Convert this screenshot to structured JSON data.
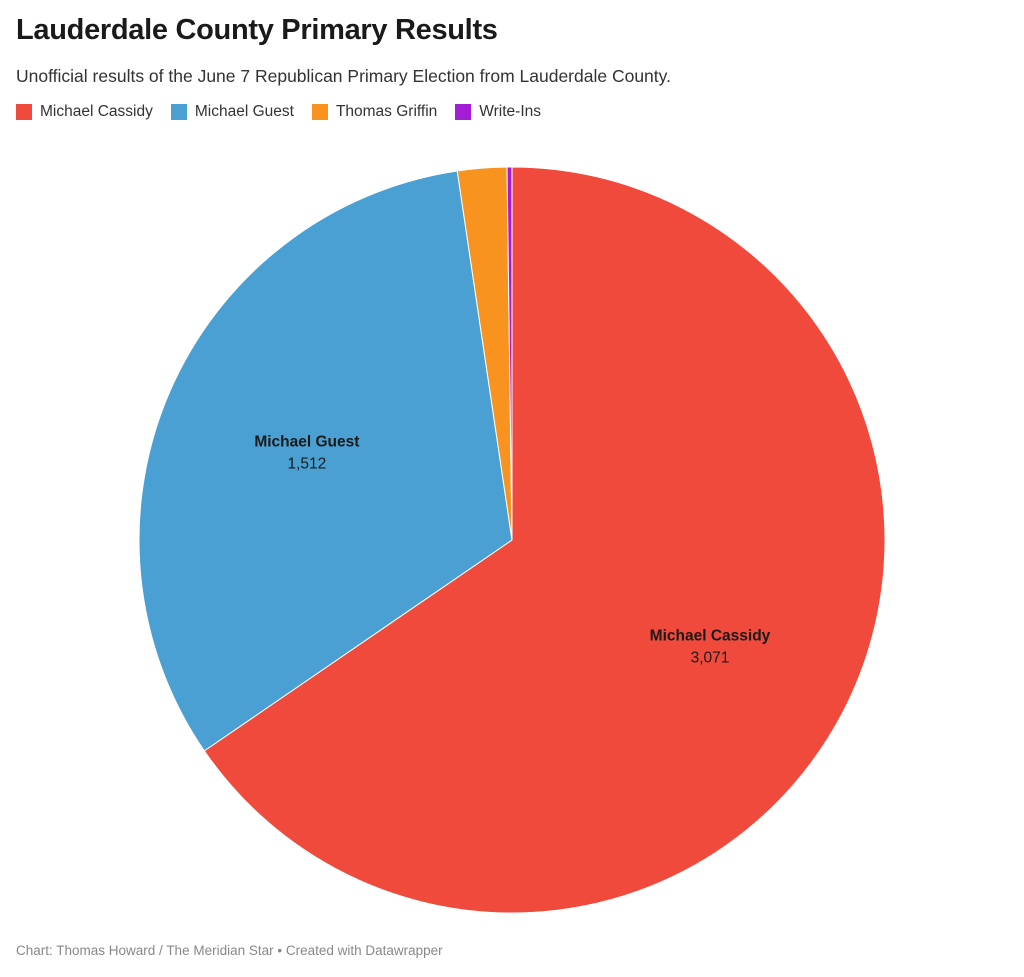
{
  "header": {
    "title": "Lauderdale County Primary Results",
    "subtitle": "Unofficial results of the June 7 Republican Primary Election from Lauderdale County."
  },
  "footer": {
    "credit": "Chart: Thomas Howard / The Meridian Star • Created with Datawrapper"
  },
  "chart_data": {
    "type": "pie",
    "title": "Lauderdale County Primary Results",
    "subtitle": "Unofficial results of the June 7 Republican Primary Election from Lauderdale County.",
    "legend_position": "top-left",
    "slices": [
      {
        "name": "Michael Cassidy",
        "value": 3071,
        "value_label": "3,071",
        "color": "#ef4a3c",
        "labeled": true
      },
      {
        "name": "Michael Guest",
        "value": 1512,
        "value_label": "1,512",
        "color": "#4ba0d3",
        "labeled": true
      },
      {
        "name": "Thomas Griffin",
        "value": 100,
        "value_label": "",
        "color": "#f7931e",
        "labeled": false
      },
      {
        "name": "Write-Ins",
        "value": 10,
        "value_label": "",
        "color": "#a31dd6",
        "labeled": false
      }
    ]
  }
}
